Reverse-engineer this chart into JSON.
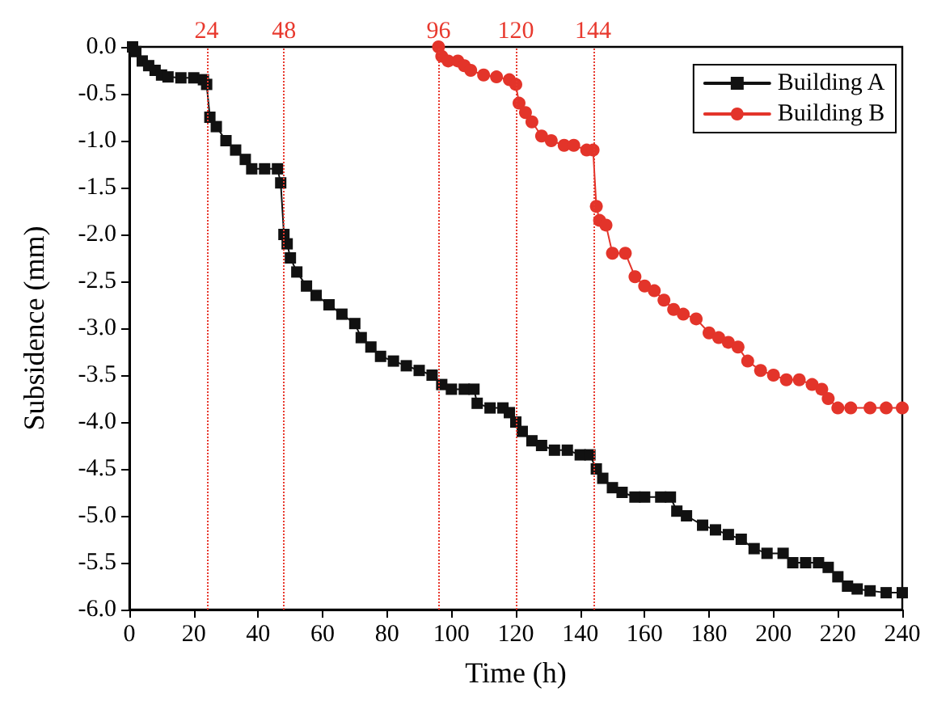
{
  "chart_data": {
    "type": "line",
    "xlabel": "Time (h)",
    "ylabel": "Subsidence (mm)",
    "xlim": [
      0,
      240
    ],
    "xticks": [
      0,
      20,
      40,
      60,
      80,
      100,
      120,
      140,
      160,
      180,
      200,
      220,
      240
    ],
    "ylim": [
      -6,
      0
    ],
    "yticks": [
      {
        "value": -6,
        "label": "-6.0"
      },
      {
        "value": -5.5,
        "label": "-5.5"
      },
      {
        "value": -5,
        "label": "-5.0"
      },
      {
        "value": -4.5,
        "label": "-4.5"
      },
      {
        "value": -4,
        "label": "-4.0"
      },
      {
        "value": -3.5,
        "label": "-3.5"
      },
      {
        "value": -3,
        "label": "-3.0"
      },
      {
        "value": -2.5,
        "label": "-2.5"
      },
      {
        "value": -2,
        "label": "-2.0"
      },
      {
        "value": -1.5,
        "label": "-1.5"
      },
      {
        "value": -1,
        "label": "-1.0"
      },
      {
        "value": -0.5,
        "label": "-0.5"
      },
      {
        "value": 0,
        "label": "0.0"
      }
    ],
    "grid": false,
    "legend": "top right",
    "line_style": "solid",
    "ref_lines": [
      {
        "axis": "x",
        "value": 24,
        "label": "24",
        "color": "#e8392e",
        "line_style": "dotted"
      },
      {
        "axis": "x",
        "value": 48,
        "label": "48",
        "color": "#e8392e",
        "line_style": "dotted"
      },
      {
        "axis": "x",
        "value": 96,
        "label": "96",
        "color": "#e8392e",
        "line_style": "dotted"
      },
      {
        "axis": "x",
        "value": 120,
        "label": "120",
        "color": "#e8392e",
        "line_style": "dotted"
      },
      {
        "axis": "x",
        "value": 144,
        "label": "144",
        "color": "#e8392e",
        "line_style": "dotted"
      }
    ],
    "series": [
      {
        "name": "Building A",
        "color": "#111111",
        "marker": "square",
        "x": [
          1,
          2,
          4,
          6,
          8,
          10,
          12,
          16,
          20,
          23,
          24,
          25,
          27,
          30,
          33,
          36,
          38,
          42,
          46,
          47,
          48,
          49,
          50,
          52,
          55,
          58,
          62,
          66,
          70,
          72,
          75,
          78,
          82,
          86,
          90,
          94,
          97,
          100,
          104,
          107,
          108,
          112,
          116,
          118,
          120,
          122,
          125,
          128,
          132,
          136,
          140,
          143,
          145,
          147,
          150,
          153,
          157,
          160,
          165,
          168,
          170,
          173,
          178,
          182,
          186,
          190,
          194,
          198,
          203,
          206,
          210,
          214,
          217,
          220,
          223,
          226,
          230,
          235,
          240
        ],
        "values": [
          0,
          -0.05,
          -0.15,
          -0.2,
          -0.25,
          -0.3,
          -0.32,
          -0.33,
          -0.33,
          -0.35,
          -0.4,
          -0.75,
          -0.85,
          -1.0,
          -1.1,
          -1.2,
          -1.3,
          -1.3,
          -1.3,
          -1.45,
          -2.0,
          -2.1,
          -2.25,
          -2.4,
          -2.55,
          -2.65,
          -2.75,
          -2.85,
          -2.95,
          -3.1,
          -3.2,
          -3.3,
          -3.35,
          -3.4,
          -3.45,
          -3.5,
          -3.6,
          -3.65,
          -3.65,
          -3.65,
          -3.8,
          -3.85,
          -3.85,
          -3.9,
          -4.0,
          -4.1,
          -4.2,
          -4.25,
          -4.3,
          -4.3,
          -4.35,
          -4.35,
          -4.5,
          -4.6,
          -4.7,
          -4.75,
          -4.8,
          -4.8,
          -4.8,
          -4.8,
          -4.95,
          -5.0,
          -5.1,
          -5.15,
          -5.2,
          -5.25,
          -5.35,
          -5.4,
          -5.4,
          -5.5,
          -5.5,
          -5.5,
          -5.55,
          -5.65,
          -5.75,
          -5.78,
          -5.8,
          -5.82,
          -5.82
        ]
      },
      {
        "name": "Building B",
        "color": "#e3342a",
        "marker": "circle",
        "x": [
          96,
          97,
          99,
          102,
          104,
          106,
          110,
          114,
          118,
          120,
          121,
          123,
          125,
          128,
          131,
          135,
          138,
          142,
          144,
          145,
          146,
          148,
          150,
          154,
          157,
          160,
          163,
          166,
          169,
          172,
          176,
          180,
          183,
          186,
          189,
          192,
          196,
          200,
          204,
          208,
          212,
          215,
          217,
          220,
          224,
          230,
          235,
          240
        ],
        "values": [
          0,
          -0.1,
          -0.15,
          -0.15,
          -0.2,
          -0.25,
          -0.3,
          -0.32,
          -0.35,
          -0.4,
          -0.6,
          -0.7,
          -0.8,
          -0.95,
          -1.0,
          -1.05,
          -1.05,
          -1.1,
          -1.1,
          -1.7,
          -1.85,
          -1.9,
          -2.2,
          -2.2,
          -2.45,
          -2.55,
          -2.6,
          -2.7,
          -2.8,
          -2.85,
          -2.9,
          -3.05,
          -3.1,
          -3.15,
          -3.2,
          -3.35,
          -3.45,
          -3.5,
          -3.55,
          -3.55,
          -3.6,
          -3.65,
          -3.75,
          -3.85,
          -3.85,
          -3.85,
          -3.85,
          -3.85
        ]
      }
    ]
  }
}
